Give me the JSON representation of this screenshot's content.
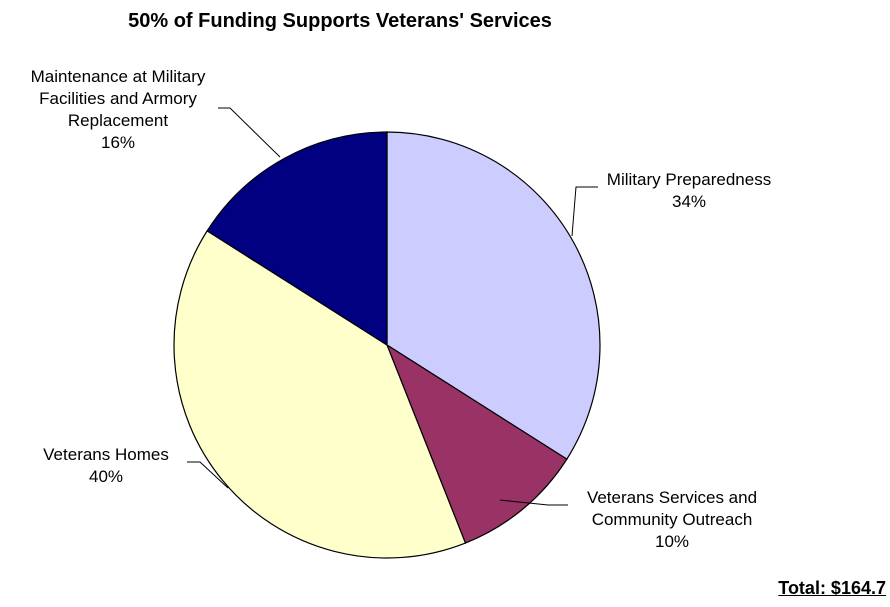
{
  "chart_data": {
    "type": "pie",
    "title": "50% of Funding Supports Veterans' Services",
    "slices": [
      {
        "label": "Military Preparedness",
        "value": 34,
        "pct_label": "34%",
        "color": "#ccccff"
      },
      {
        "label": "Veterans Services and Community Outreach",
        "value": 10,
        "pct_label": "10%",
        "color": "#993366"
      },
      {
        "label": "Veterans Homes",
        "value": 40,
        "pct_label": "40%",
        "color": "#ffffcc"
      },
      {
        "label": "Maintenance at Military Facilities and Armory Replacement",
        "value": 16,
        "pct_label": "16%",
        "color": "#000080"
      }
    ],
    "total_label": "Total: $164.7"
  }
}
